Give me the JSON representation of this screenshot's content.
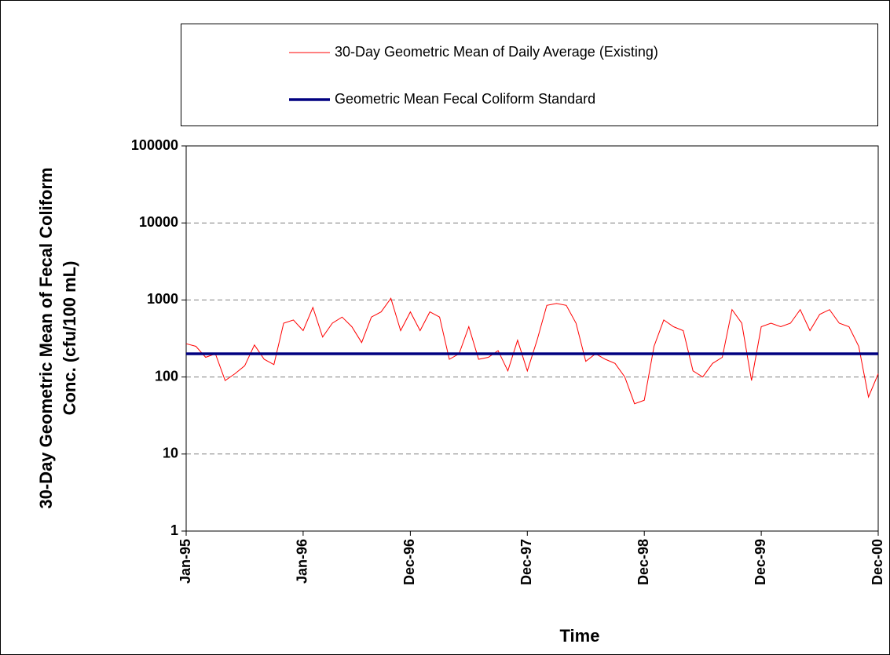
{
  "chart_data": {
    "type": "line",
    "ylabel": [
      "30-Day Geometric Mean of Fecal Coliform",
      "Conc. (cfu/100 mL)"
    ],
    "xlabel": "Time",
    "x": [
      "1995-01",
      "1995-02",
      "1995-03",
      "1995-04",
      "1995-05",
      "1995-06",
      "1995-07",
      "1995-08",
      "1995-09",
      "1995-10",
      "1995-11",
      "1995-12",
      "1996-01",
      "1996-02",
      "1996-03",
      "1996-04",
      "1996-05",
      "1996-06",
      "1996-07",
      "1996-08",
      "1996-09",
      "1996-10",
      "1996-11",
      "1996-12",
      "1997-01",
      "1997-02",
      "1997-03",
      "1997-04",
      "1997-05",
      "1997-06",
      "1997-07",
      "1997-08",
      "1997-09",
      "1997-10",
      "1997-11",
      "1997-12",
      "1998-01",
      "1998-02",
      "1998-03",
      "1998-04",
      "1998-05",
      "1998-06",
      "1998-07",
      "1998-08",
      "1998-09",
      "1998-10",
      "1998-11",
      "1998-12",
      "1999-01",
      "1999-02",
      "1999-03",
      "1999-04",
      "1999-05",
      "1999-06",
      "1999-07",
      "1999-08",
      "1999-09",
      "1999-10",
      "1999-11",
      "1999-12",
      "2000-01",
      "2000-02",
      "2000-03",
      "2000-04",
      "2000-05",
      "2000-06",
      "2000-07",
      "2000-08",
      "2000-09",
      "2000-10",
      "2000-11",
      "2000-12"
    ],
    "series": [
      {
        "name": "30-Day Geometric Mean of Daily Average (Existing)",
        "color": "#ff0000",
        "width": 1,
        "values": [
          270,
          250,
          180,
          200,
          90,
          110,
          140,
          260,
          170,
          145,
          500,
          550,
          400,
          800,
          330,
          500,
          600,
          450,
          280,
          600,
          700,
          1050,
          400,
          700,
          400,
          700,
          600,
          170,
          200,
          450,
          170,
          180,
          220,
          120,
          300,
          120,
          300,
          850,
          900,
          850,
          500,
          160,
          200,
          170,
          150,
          100,
          45,
          50,
          250,
          550,
          450,
          400,
          120,
          100,
          150,
          180,
          750,
          500,
          90,
          450,
          500,
          450,
          500,
          750,
          400,
          650,
          750,
          500,
          450,
          250,
          55,
          110
        ]
      },
      {
        "name": "Geometric Mean Fecal Coliform Standard",
        "color": "#000080",
        "width": 3.5,
        "values": [
          200,
          200,
          200,
          200,
          200,
          200,
          200,
          200,
          200,
          200,
          200,
          200,
          200,
          200,
          200,
          200,
          200,
          200,
          200,
          200,
          200,
          200,
          200,
          200,
          200,
          200,
          200,
          200,
          200,
          200,
          200,
          200,
          200,
          200,
          200,
          200,
          200,
          200,
          200,
          200,
          200,
          200,
          200,
          200,
          200,
          200,
          200,
          200,
          200,
          200,
          200,
          200,
          200,
          200,
          200,
          200,
          200,
          200,
          200,
          200,
          200,
          200,
          200,
          200,
          200,
          200,
          200,
          200,
          200,
          200,
          200,
          200
        ]
      }
    ],
    "xlim": [
      "1995-01",
      "2000-12"
    ],
    "xticks": [
      {
        "value": "1995-01",
        "label": "Jan-95"
      },
      {
        "value": "1996-01",
        "label": "Jan-96"
      },
      {
        "value": "1996-12",
        "label": "Dec-96"
      },
      {
        "value": "1997-12",
        "label": "Dec-97"
      },
      {
        "value": "1998-12",
        "label": "Dec-98"
      },
      {
        "value": "1999-12",
        "label": "Dec-99"
      },
      {
        "value": "2000-12",
        "label": "Dec-00"
      }
    ],
    "ylim": [
      1,
      100000
    ],
    "yticks": [
      1,
      10,
      100,
      1000,
      10000,
      100000
    ],
    "log_y": true,
    "grid": true,
    "legend": "top"
  }
}
